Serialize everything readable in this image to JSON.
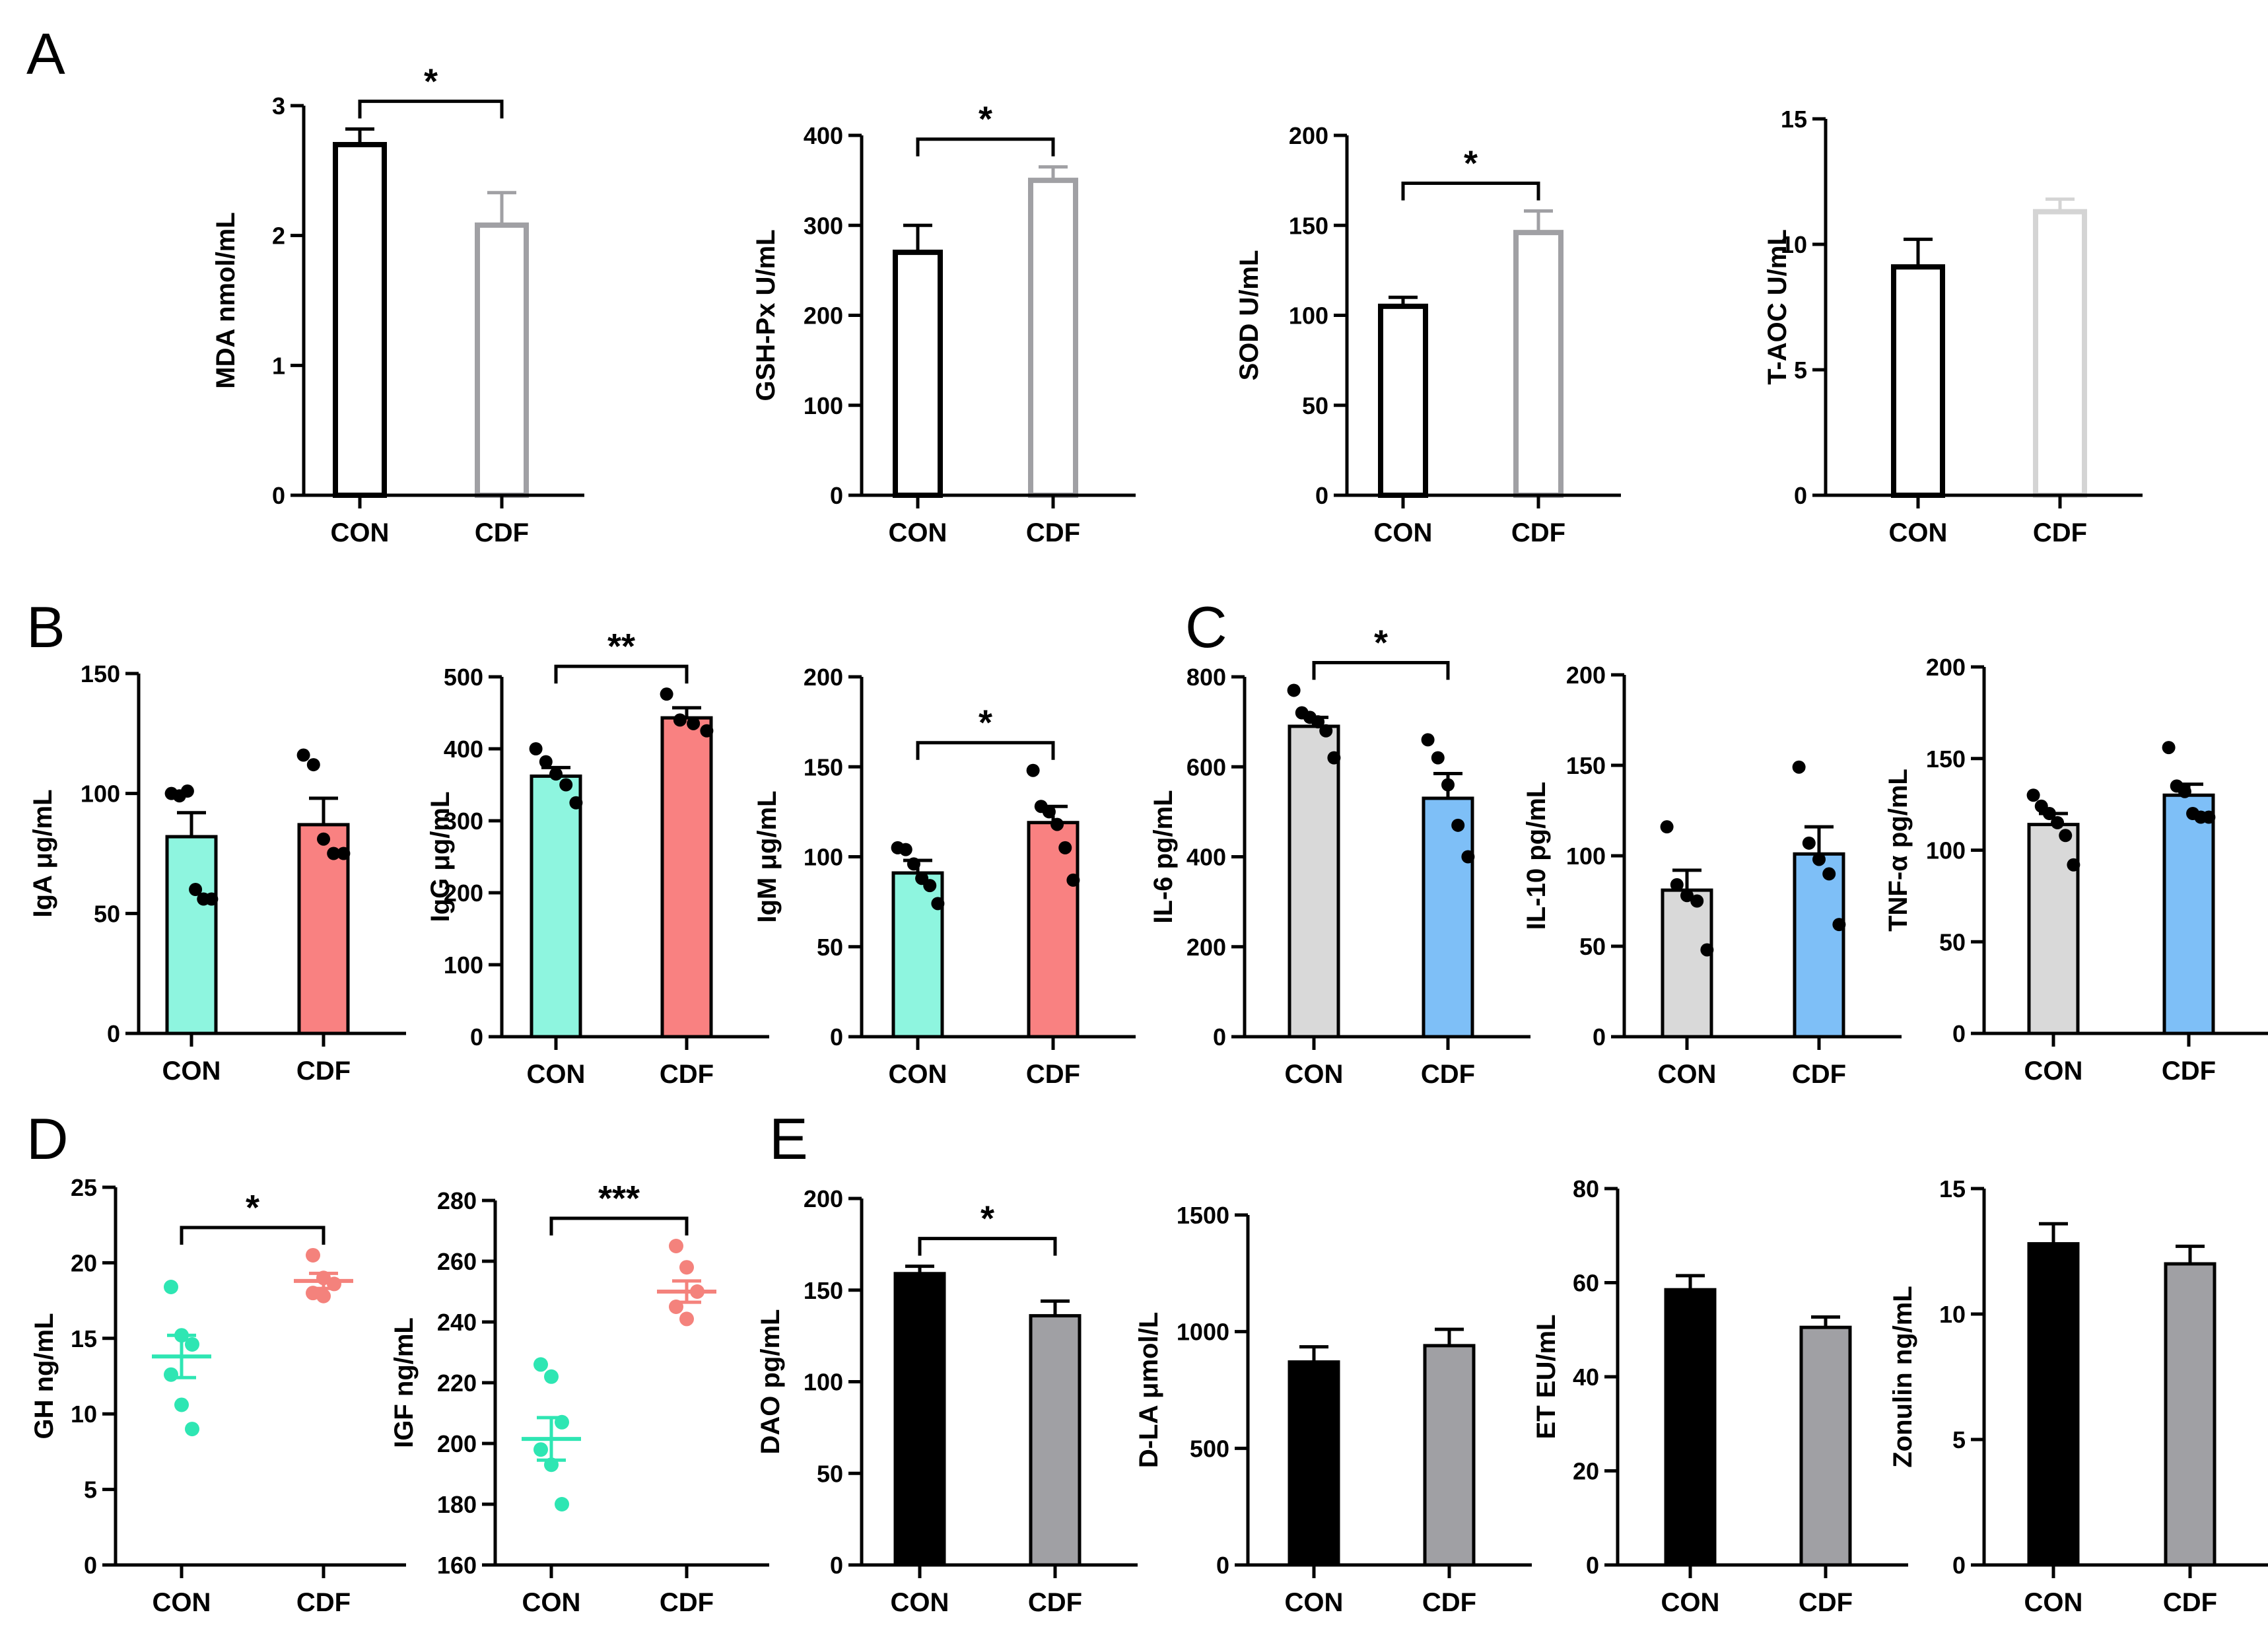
{
  "panel_labels": [
    "A",
    "B",
    "C",
    "D",
    "E"
  ],
  "colors": {
    "black": "#000000",
    "gray": "#a0a0a4",
    "light_gray": "#d4d4d4",
    "teal_fill": "#8ef5df",
    "teal_point": "#2ee6b3",
    "salmon_fill": "#f98181",
    "salmon_point": "#f4827c",
    "blue_fill": "#7ebff7",
    "panel_bg_gray": "#d9d9d9"
  },
  "chart_data": [
    {
      "id": "mda",
      "panel": "A",
      "type": "bar",
      "categories": [
        "CON",
        "CDF"
      ],
      "values": [
        2.7,
        2.08
      ],
      "errors": [
        0.12,
        0.25
      ],
      "ylabel": "MDA nmol/mL",
      "ylim": [
        0,
        3
      ],
      "yticks": [
        "0",
        "1",
        "2",
        "3"
      ],
      "significance": "*"
    },
    {
      "id": "gshpx",
      "panel": "A",
      "type": "bar",
      "categories": [
        "CON",
        "CDF"
      ],
      "values": [
        270,
        350
      ],
      "errors": [
        30,
        15
      ],
      "ylabel": "GSH-Px U/mL",
      "ylim": [
        0,
        400
      ],
      "yticks": [
        "0",
        "100",
        "200",
        "300",
        "400"
      ],
      "significance": "*"
    },
    {
      "id": "sod",
      "panel": "A",
      "type": "bar",
      "categories": [
        "CON",
        "CDF"
      ],
      "values": [
        105,
        146
      ],
      "errors": [
        5,
        12
      ],
      "ylabel": "SOD U/mL",
      "ylim": [
        0,
        200
      ],
      "yticks": [
        "0",
        "50",
        "100",
        "150",
        "200"
      ],
      "significance": "*"
    },
    {
      "id": "taoc",
      "panel": "A",
      "type": "bar",
      "categories": [
        "CON",
        "CDF"
      ],
      "values": [
        9.1,
        11.3
      ],
      "errors": [
        1.1,
        0.5
      ],
      "ylabel": "T-AOC U/mL",
      "ylim": [
        0,
        15
      ],
      "yticks": [
        "0",
        "5",
        "10",
        "15"
      ],
      "significance": ""
    },
    {
      "id": "iga",
      "panel": "B",
      "type": "bar",
      "categories": [
        "CON",
        "CDF"
      ],
      "values": [
        82,
        87
      ],
      "errors": [
        10,
        11
      ],
      "ylabel": "IgA μg/mL",
      "ylim": [
        0,
        150
      ],
      "yticks": [
        "0",
        "50",
        "100",
        "150"
      ],
      "significance": "",
      "points": [
        [
          100,
          99,
          101,
          60,
          56,
          56
        ],
        [
          116,
          112,
          81,
          75,
          75
        ]
      ]
    },
    {
      "id": "igg",
      "panel": "B",
      "type": "bar",
      "categories": [
        "CON",
        "CDF"
      ],
      "values": [
        362,
        443
      ],
      "errors": [
        12,
        14
      ],
      "ylabel": "IgG μg/mL",
      "ylim": [
        0,
        500
      ],
      "yticks": [
        "0",
        "100",
        "200",
        "300",
        "400",
        "500"
      ],
      "significance": "**",
      "points": [
        [
          400,
          382,
          365,
          350,
          325
        ],
        [
          476,
          440,
          435,
          425
        ]
      ]
    },
    {
      "id": "igm",
      "panel": "B",
      "type": "bar",
      "categories": [
        "CON",
        "CDF"
      ],
      "values": [
        91,
        119
      ],
      "errors": [
        7,
        9
      ],
      "ylabel": "IgM μg/mL",
      "ylim": [
        0,
        200
      ],
      "yticks": [
        "0",
        "50",
        "100",
        "150",
        "200"
      ],
      "significance": "*",
      "points": [
        [
          105,
          104,
          96,
          88,
          84,
          74
        ],
        [
          148,
          128,
          125,
          118,
          105,
          87
        ]
      ]
    },
    {
      "id": "il6",
      "panel": "C",
      "type": "bar",
      "categories": [
        "CON",
        "CDF"
      ],
      "values": [
        690,
        530
      ],
      "errors": [
        20,
        55
      ],
      "ylabel": "IL-6 pg/mL",
      "ylim": [
        0,
        800
      ],
      "yticks": [
        "0",
        "200",
        "400",
        "600",
        "800"
      ],
      "significance": "*",
      "points": [
        [
          770,
          720,
          710,
          700,
          680,
          620
        ],
        [
          660,
          620,
          560,
          470,
          400
        ]
      ]
    },
    {
      "id": "il10",
      "panel": "C",
      "type": "bar",
      "categories": [
        "CON",
        "CDF"
      ],
      "values": [
        81,
        101
      ],
      "errors": [
        11,
        15
      ],
      "ylabel": "IL-10 pg/mL",
      "ylim": [
        0,
        200
      ],
      "yticks": [
        "0",
        "50",
        "100",
        "150",
        "200"
      ],
      "significance": "",
      "points": [
        [
          116,
          84,
          78,
          75,
          48
        ],
        [
          149,
          107,
          98,
          90,
          62
        ]
      ]
    },
    {
      "id": "tnfa",
      "panel": "C",
      "type": "bar",
      "categories": [
        "CON",
        "CDF"
      ],
      "values": [
        114,
        130
      ],
      "errors": [
        6,
        6
      ],
      "ylabel": "TNF-α pg/mL",
      "ylim": [
        0,
        200
      ],
      "yticks": [
        "0",
        "50",
        "100",
        "150",
        "200"
      ],
      "significance": "",
      "points": [
        [
          130,
          124,
          120,
          115,
          108,
          92
        ],
        [
          156,
          135,
          132,
          120,
          118,
          118
        ]
      ]
    },
    {
      "id": "gh",
      "panel": "D",
      "type": "scatter",
      "categories": [
        "CON",
        "CDF"
      ],
      "means": [
        13.8,
        18.8
      ],
      "errors": [
        1.4,
        0.5
      ],
      "ylabel": "GH ng/mL",
      "ylim": [
        0,
        25
      ],
      "yticks": [
        "0",
        "5",
        "10",
        "15",
        "20",
        "25"
      ],
      "significance": "*",
      "points": [
        [
          18.4,
          15.2,
          14.6,
          12.6,
          10.6,
          9.0
        ],
        [
          20.5,
          19.0,
          18.6,
          18.0,
          17.8
        ]
      ]
    },
    {
      "id": "igf",
      "panel": "D",
      "type": "scatter",
      "categories": [
        "CON",
        "CDF"
      ],
      "means": [
        201.5,
        250
      ],
      "errors": [
        7,
        3.5
      ],
      "ylabel": "IGF ng/mL",
      "ylim": [
        160,
        280
      ],
      "yticks": [
        "160",
        "180",
        "200",
        "220",
        "240",
        "260",
        "280"
      ],
      "significance": "***",
      "points": [
        [
          226,
          222,
          207,
          198,
          193,
          180
        ],
        [
          265,
          258,
          250,
          245,
          241
        ]
      ]
    },
    {
      "id": "dao",
      "panel": "E",
      "type": "bar",
      "categories": [
        "CON",
        "CDF"
      ],
      "values": [
        159,
        136
      ],
      "errors": [
        4,
        8
      ],
      "ylabel": "DAO pg/mL",
      "ylim": [
        0,
        200
      ],
      "yticks": [
        "0",
        "50",
        "100",
        "150",
        "200"
      ],
      "significance": "*"
    },
    {
      "id": "dla",
      "panel": "E",
      "type": "bar",
      "categories": [
        "CON",
        "CDF"
      ],
      "values": [
        870,
        940
      ],
      "errors": [
        65,
        70
      ],
      "ylabel": "D-LA μmol/L",
      "ylim": [
        0,
        1500
      ],
      "yticks": [
        "0",
        "500",
        "1000",
        "1500"
      ],
      "significance": ""
    },
    {
      "id": "et",
      "panel": "E",
      "type": "bar",
      "categories": [
        "CON",
        "CDF"
      ],
      "values": [
        58.5,
        50.5
      ],
      "errors": [
        3,
        2.2
      ],
      "ylabel": "ET EU/mL",
      "ylim": [
        0,
        80
      ],
      "yticks": [
        "0",
        "20",
        "40",
        "60",
        "80"
      ],
      "significance": ""
    },
    {
      "id": "zonulin",
      "panel": "E",
      "type": "bar",
      "categories": [
        "CON",
        "CDF"
      ],
      "values": [
        12.8,
        12.0
      ],
      "errors": [
        0.8,
        0.7
      ],
      "ylabel": "Zonulin ng/mL",
      "ylim": [
        0,
        15
      ],
      "yticks": [
        "0",
        "5",
        "10",
        "15"
      ],
      "significance": ""
    }
  ]
}
